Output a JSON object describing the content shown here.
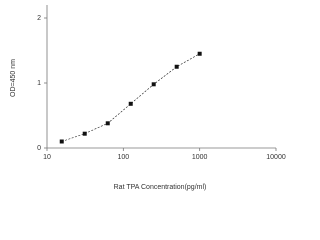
{
  "chart_data": {
    "type": "scatter",
    "x_label": "Rat TPA Concentration(pg/ml)",
    "y_label": "OD=450 nm",
    "x": [
      15.6,
      31.2,
      62.5,
      125,
      250,
      500,
      1000
    ],
    "values": [
      0.1,
      0.22,
      0.38,
      0.68,
      0.98,
      1.25,
      1.45
    ],
    "color": "#111111",
    "line": true,
    "x_log": true,
    "xlim": [
      10,
      10000
    ],
    "xticks": [
      10,
      100,
      1000,
      10000
    ],
    "ylim": [
      0,
      2.2
    ],
    "yticks": [
      0,
      1,
      2
    ]
  }
}
